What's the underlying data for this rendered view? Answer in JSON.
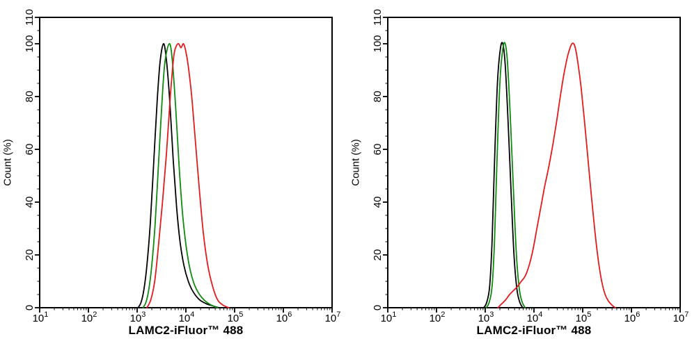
{
  "figure": {
    "background": "#ffffff",
    "panel_count": 2
  },
  "chart_data": [
    {
      "type": "line",
      "panel": "left",
      "title": "",
      "xlabel": "LAMC2-iFluor™ 488",
      "ylabel": "Count  (%)",
      "xscale": "log10",
      "xlim_log10": [
        1,
        7
      ],
      "ylim": [
        0,
        110
      ],
      "x_tick_exponents": [
        1,
        2,
        3,
        4,
        5,
        6,
        7
      ],
      "y_major_ticks": [
        0,
        20,
        40,
        60,
        80,
        100,
        110
      ],
      "y_minor_step": 5,
      "grid": false,
      "legend": "none",
      "frame": "full-box",
      "series": [
        {
          "name": "black",
          "color": "#000000",
          "points_log10x_pct": [
            [
              3.02,
              0
            ],
            [
              3.08,
              2
            ],
            [
              3.14,
              7
            ],
            [
              3.2,
              16
            ],
            [
              3.27,
              32
            ],
            [
              3.34,
              55
            ],
            [
              3.41,
              78
            ],
            [
              3.47,
              93
            ],
            [
              3.54,
              100
            ],
            [
              3.6,
              94
            ],
            [
              3.67,
              78
            ],
            [
              3.74,
              56
            ],
            [
              3.81,
              38
            ],
            [
              3.88,
              25
            ],
            [
              3.96,
              16
            ],
            [
              4.05,
              10
            ],
            [
              4.15,
              6
            ],
            [
              4.28,
              3
            ],
            [
              4.42,
              1.5
            ],
            [
              4.55,
              0.7
            ],
            [
              4.68,
              0
            ]
          ]
        },
        {
          "name": "green",
          "color": "#0e8a0e",
          "points_log10x_pct": [
            [
              3.12,
              0
            ],
            [
              3.18,
              2
            ],
            [
              3.24,
              7
            ],
            [
              3.3,
              16
            ],
            [
              3.37,
              32
            ],
            [
              3.44,
              55
            ],
            [
              3.51,
              78
            ],
            [
              3.57,
              93
            ],
            [
              3.66,
              100
            ],
            [
              3.72,
              94
            ],
            [
              3.79,
              76
            ],
            [
              3.86,
              54
            ],
            [
              3.93,
              36
            ],
            [
              4.0,
              24
            ],
            [
              4.08,
              15
            ],
            [
              4.17,
              9
            ],
            [
              4.28,
              5
            ],
            [
              4.4,
              2.5
            ],
            [
              4.52,
              1
            ],
            [
              4.65,
              0
            ]
          ]
        },
        {
          "name": "red",
          "color": "#e41a1c",
          "points_log10x_pct": [
            [
              3.2,
              0
            ],
            [
              3.28,
              3
            ],
            [
              3.36,
              10
            ],
            [
              3.44,
              24
            ],
            [
              3.52,
              40
            ],
            [
              3.6,
              58
            ],
            [
              3.68,
              80
            ],
            [
              3.75,
              95
            ],
            [
              3.8,
              99
            ],
            [
              3.85,
              100
            ],
            [
              3.9,
              98.5
            ],
            [
              3.95,
              100
            ],
            [
              4.0,
              97
            ],
            [
              4.06,
              90
            ],
            [
              4.13,
              78
            ],
            [
              4.2,
              62
            ],
            [
              4.28,
              44
            ],
            [
              4.36,
              28
            ],
            [
              4.45,
              16
            ],
            [
              4.55,
              8
            ],
            [
              4.65,
              3
            ],
            [
              4.76,
              1
            ],
            [
              4.88,
              0
            ]
          ]
        }
      ]
    },
    {
      "type": "line",
      "panel": "right",
      "title": "",
      "xlabel": "LAMC2-iFluor™ 488",
      "ylabel": "Count  (%)",
      "xscale": "log10",
      "xlim_log10": [
        1,
        7
      ],
      "ylim": [
        0,
        110
      ],
      "x_tick_exponents": [
        1,
        2,
        3,
        4,
        5,
        6,
        7
      ],
      "y_major_ticks": [
        0,
        20,
        40,
        60,
        80,
        100,
        110
      ],
      "y_minor_step": 5,
      "grid": false,
      "legend": "none",
      "frame": "full-box",
      "series": [
        {
          "name": "black",
          "color": "#000000",
          "points_log10x_pct": [
            [
              2.97,
              0
            ],
            [
              3.03,
              2
            ],
            [
              3.09,
              8
            ],
            [
              3.14,
              25
            ],
            [
              3.19,
              55
            ],
            [
              3.25,
              85
            ],
            [
              3.31,
              98
            ],
            [
              3.36,
              100
            ],
            [
              3.41,
              92
            ],
            [
              3.47,
              70
            ],
            [
              3.53,
              44
            ],
            [
              3.59,
              20
            ],
            [
              3.65,
              7
            ],
            [
              3.71,
              2
            ],
            [
              3.77,
              0
            ]
          ]
        },
        {
          "name": "green",
          "color": "#0e8a0e",
          "points_log10x_pct": [
            [
              3.02,
              0
            ],
            [
              3.08,
              2
            ],
            [
              3.14,
              8
            ],
            [
              3.19,
              25
            ],
            [
              3.24,
              55
            ],
            [
              3.3,
              85
            ],
            [
              3.36,
              98
            ],
            [
              3.41,
              100
            ],
            [
              3.46,
              92
            ],
            [
              3.52,
              70
            ],
            [
              3.58,
              44
            ],
            [
              3.64,
              20
            ],
            [
              3.7,
              7
            ],
            [
              3.76,
              2
            ],
            [
              3.82,
              0
            ]
          ]
        },
        {
          "name": "red",
          "color": "#e41a1c",
          "points_log10x_pct": [
            [
              3.26,
              0
            ],
            [
              3.34,
              1.5
            ],
            [
              3.42,
              3
            ],
            [
              3.5,
              5
            ],
            [
              3.58,
              6.5
            ],
            [
              3.66,
              8
            ],
            [
              3.74,
              10
            ],
            [
              3.82,
              12
            ],
            [
              3.9,
              16
            ],
            [
              3.98,
              22
            ],
            [
              4.06,
              30
            ],
            [
              4.14,
              38
            ],
            [
              4.22,
              46
            ],
            [
              4.3,
              53
            ],
            [
              4.38,
              61
            ],
            [
              4.46,
              70
            ],
            [
              4.54,
              80
            ],
            [
              4.62,
              89
            ],
            [
              4.7,
              96
            ],
            [
              4.78,
              100
            ],
            [
              4.84,
              99
            ],
            [
              4.9,
              93
            ],
            [
              4.97,
              83
            ],
            [
              5.04,
              70
            ],
            [
              5.11,
              56
            ],
            [
              5.18,
              42
            ],
            [
              5.25,
              29
            ],
            [
              5.32,
              18
            ],
            [
              5.39,
              10
            ],
            [
              5.46,
              5
            ],
            [
              5.53,
              2.5
            ],
            [
              5.6,
              1
            ],
            [
              5.67,
              0
            ]
          ]
        }
      ]
    }
  ]
}
